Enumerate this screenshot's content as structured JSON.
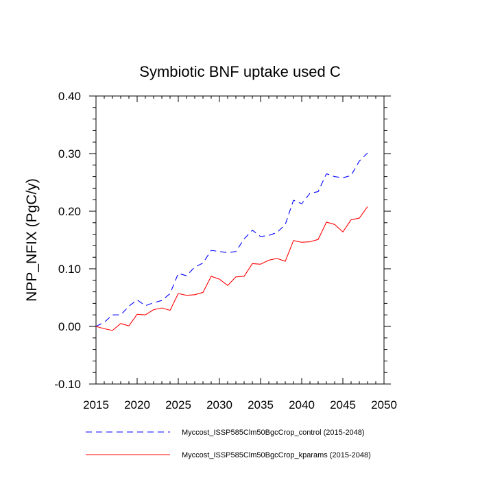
{
  "chart_data": {
    "type": "line",
    "title": "Symbiotic BNF uptake used C",
    "xlabel": "",
    "ylabel": "NPP_NFIX  (PgC/y)",
    "xlim": [
      2015,
      2050
    ],
    "ylim": [
      -0.1,
      0.4
    ],
    "xticks": [
      2015,
      2020,
      2025,
      2030,
      2035,
      2040,
      2045,
      2050
    ],
    "xtick_labels": [
      "2015",
      "2020",
      "2025",
      "2030",
      "2035",
      "2040",
      "2045",
      "2050"
    ],
    "yticks": [
      -0.1,
      0.0,
      0.1,
      0.2,
      0.3,
      0.4
    ],
    "ytick_labels": [
      "-0.10",
      "0.00",
      "0.10",
      "0.20",
      "0.30",
      "0.40"
    ],
    "x": [
      2015,
      2016,
      2017,
      2018,
      2019,
      2020,
      2021,
      2022,
      2023,
      2024,
      2025,
      2026,
      2027,
      2028,
      2029,
      2030,
      2031,
      2032,
      2033,
      2034,
      2035,
      2036,
      2037,
      2038,
      2039,
      2040,
      2041,
      2042,
      2043,
      2044,
      2045,
      2046,
      2047,
      2048
    ],
    "series": [
      {
        "name": "Myccost_ISSP585Clm50BgcCrop_control (2015-2048)",
        "color": "#0000ff",
        "style": "dashed",
        "values": [
          0.0,
          0.007,
          0.02,
          0.02,
          0.035,
          0.046,
          0.036,
          0.041,
          0.045,
          0.057,
          0.092,
          0.088,
          0.103,
          0.11,
          0.132,
          0.13,
          0.128,
          0.13,
          0.152,
          0.167,
          0.156,
          0.158,
          0.163,
          0.177,
          0.219,
          0.213,
          0.231,
          0.234,
          0.265,
          0.26,
          0.258,
          0.262,
          0.287,
          0.301
        ]
      },
      {
        "name": "Myccost_ISSP585Clm50BgcCrop_kparams (2015-2048)",
        "color": "#ff0000",
        "style": "solid",
        "values": [
          0.0,
          -0.004,
          -0.007,
          0.005,
          0.001,
          0.021,
          0.02,
          0.029,
          0.032,
          0.028,
          0.057,
          0.054,
          0.055,
          0.059,
          0.087,
          0.082,
          0.071,
          0.086,
          0.087,
          0.109,
          0.108,
          0.115,
          0.118,
          0.113,
          0.149,
          0.146,
          0.147,
          0.151,
          0.181,
          0.177,
          0.164,
          0.185,
          0.188,
          0.208
        ]
      }
    ]
  }
}
